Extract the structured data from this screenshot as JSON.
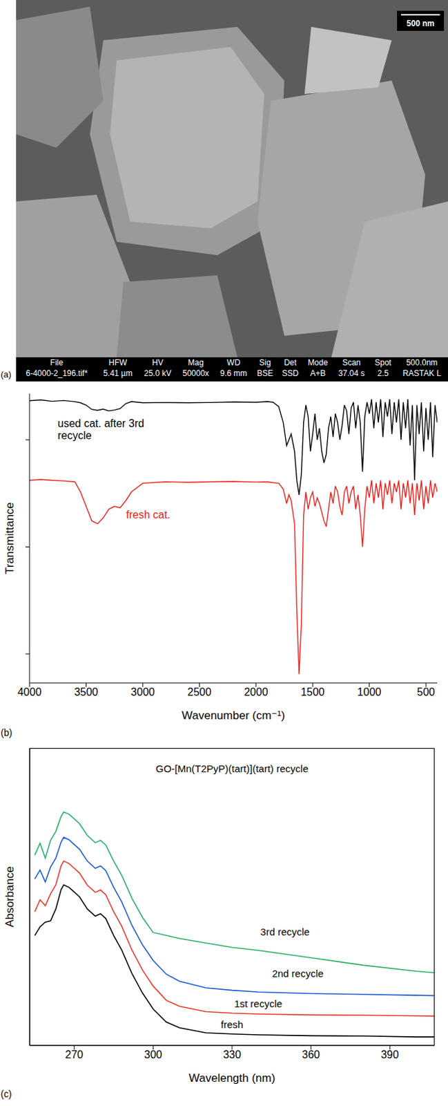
{
  "chart_data": [
    {
      "type": "image",
      "panel_label": "(a)",
      "annotations": [
        "500 nm"
      ],
      "info_bar": {
        "headers": [
          "File",
          "HFW",
          "HV",
          "Mag",
          "WD",
          "Sig",
          "Det",
          "Mode",
          "Scan",
          "Spot",
          "500.0nm"
        ],
        "values": [
          "6-4000-2_196.tif*",
          "5.41 µm",
          "25.0 kV",
          "50000x",
          "9.6 mm",
          "BSE",
          "SSD",
          "A+B",
          "37.04 s",
          "2.5",
          "RASTAK L"
        ]
      }
    },
    {
      "type": "line",
      "panel_label": "(b)",
      "x_label": "Wavenumber (cm⁻¹)",
      "y_label": "Transmittance",
      "xlim": [
        4000,
        400
      ],
      "xticks": [
        4000,
        3500,
        3000,
        2500,
        2000,
        1500,
        1000,
        500
      ],
      "ylim": [
        0,
        100
      ],
      "yticks": [
        10,
        47,
        84
      ],
      "tick_labels": "x",
      "x": [
        4000,
        3900,
        3800,
        3700,
        3600,
        3550,
        3500,
        3450,
        3400,
        3350,
        3300,
        3250,
        3200,
        3150,
        3100,
        3000,
        2800,
        2600,
        2400,
        2200,
        2000,
        1900,
        1850,
        1800,
        1760,
        1730,
        1710,
        1690,
        1660,
        1640,
        1620,
        1600,
        1580,
        1560,
        1540,
        1520,
        1500,
        1480,
        1460,
        1440,
        1420,
        1400,
        1380,
        1360,
        1340,
        1320,
        1300,
        1280,
        1260,
        1240,
        1220,
        1200,
        1180,
        1160,
        1140,
        1120,
        1100,
        1080,
        1060,
        1040,
        1020,
        1000,
        980,
        960,
        940,
        920,
        900,
        880,
        860,
        840,
        820,
        800,
        780,
        760,
        740,
        720,
        700,
        680,
        660,
        640,
        620,
        600,
        580,
        560,
        540,
        520,
        500,
        480,
        460,
        440,
        420,
        400
      ],
      "series": [
        {
          "name": "used cat. after 3rd recycle",
          "color": "#000000",
          "values": [
            97.5,
            97.8,
            97.3,
            97.6,
            97.2,
            96.8,
            96,
            94.5,
            94.2,
            94.6,
            94,
            94.3,
            94.8,
            96.5,
            97.2,
            96.8,
            96.9,
            96.8,
            96.9,
            97.1,
            97,
            97.2,
            97,
            95.5,
            90,
            82,
            84,
            86,
            80,
            70,
            65,
            72,
            90,
            96,
            92,
            80,
            86,
            93,
            84,
            88,
            80,
            76,
            79,
            88,
            92,
            85,
            93,
            90,
            84,
            89,
            96,
            94,
            86,
            95,
            97,
            88,
            96,
            90,
            73,
            92,
            97,
            93,
            98,
            88,
            97,
            90,
            98,
            85,
            97,
            92,
            98,
            86,
            97,
            90,
            98,
            84,
            97,
            88,
            98,
            82,
            96,
            70,
            96,
            86,
            97,
            80,
            95,
            84,
            97,
            78,
            96,
            90
          ]
        },
        {
          "name": "fresh cat.",
          "color": "#e8201a",
          "values": [
            70,
            70.3,
            70,
            69.8,
            69.5,
            66,
            61,
            56,
            55,
            57,
            60,
            61,
            60.5,
            63,
            66,
            69,
            69.5,
            69.3,
            69.5,
            69.6,
            69.4,
            69.5,
            69.2,
            69,
            67,
            62,
            65,
            63,
            55,
            25,
            3,
            20,
            58,
            66,
            60,
            64,
            66,
            61,
            64,
            62,
            59,
            56,
            54,
            60,
            66,
            62,
            68,
            66,
            61,
            58,
            66,
            68,
            62,
            66,
            68,
            60,
            65,
            58,
            47,
            60,
            68,
            64,
            70,
            62,
            69,
            64,
            70,
            60,
            69,
            65,
            70,
            62,
            69,
            66,
            70,
            60,
            69,
            64,
            70,
            62,
            69,
            58,
            69,
            63,
            70,
            60,
            68,
            62,
            70,
            64,
            69,
            66
          ]
        }
      ]
    },
    {
      "type": "line",
      "panel_label": "(c)",
      "title": "GO-[Mn(T2PyP)(tart)](tart) recycle",
      "x_label": "Wavelength (nm)",
      "y_label": "Absorbance",
      "xlim": [
        253,
        407
      ],
      "xticks": [
        270,
        300,
        330,
        360,
        390
      ],
      "ylim": [
        0,
        100
      ],
      "tick_labels": "x",
      "x": [
        255,
        257,
        259,
        261,
        263,
        265,
        266,
        268,
        270,
        272,
        275,
        278,
        280,
        282,
        285,
        288,
        292,
        296,
        300,
        305,
        310,
        320,
        330,
        340,
        360,
        380,
        400,
        407
      ],
      "series": [
        {
          "name": "fresh",
          "color": "#000000",
          "values": [
            37,
            39.9,
            41.5,
            41.9,
            45.9,
            52.4,
            54,
            53.2,
            51.6,
            50,
            45.9,
            43.5,
            44.3,
            42.7,
            37,
            32.2,
            24.1,
            17.6,
            12.3,
            7.9,
            6,
            4.3,
            3.9,
            3.6,
            3.3,
            3.2,
            2.9,
            2.9
          ]
        },
        {
          "name": "1st recycle",
          "color": "#e8392f",
          "values": [
            45,
            49,
            47,
            51,
            54,
            60.4,
            62,
            61.2,
            59.6,
            58,
            53.9,
            51.5,
            52.3,
            50.7,
            45,
            40.2,
            32,
            25.3,
            20,
            15.2,
            13.2,
            11.4,
            10.9,
            10.6,
            10.3,
            10.2,
            10,
            9.9
          ]
        },
        {
          "name": "2nd recycle",
          "color": "#1a5ad8",
          "values": [
            56,
            59,
            55,
            60,
            63,
            68.4,
            70,
            69.2,
            67.6,
            66,
            62,
            59.6,
            60.4,
            58.8,
            53.2,
            48.4,
            40.3,
            33.8,
            28.6,
            24,
            21.6,
            19.4,
            18.6,
            18,
            17.5,
            17.2,
            16.9,
            16.8
          ]
        },
        {
          "name": "3rd recycle",
          "color": "#27b066",
          "values": [
            64,
            68,
            63,
            69,
            72,
            77,
            78.5,
            77.8,
            76.2,
            74.6,
            70.6,
            68.2,
            69,
            67.4,
            62,
            57.3,
            49.4,
            43,
            38,
            37,
            36,
            34.5,
            33,
            32,
            29.5,
            27,
            25,
            24.5
          ]
        }
      ]
    }
  ]
}
